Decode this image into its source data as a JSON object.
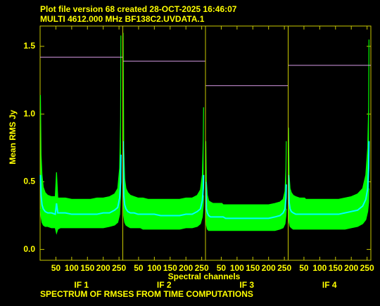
{
  "chart_data": {
    "type": "line",
    "title": "Plot file version 68  created 28-OCT-2025 16:46:07",
    "subtitle": "MULTI 4612.000 MHz  BF138C2.UVDATA.1",
    "y_label": "Mean RMS Jy",
    "x_label": "Spectral channels",
    "footer": "SPECTRUM OF RMSES FROM TIME COMPUTATIONS",
    "ylim": [
      -0.08,
      1.65
    ],
    "yticks": [
      {
        "value": 0,
        "label": "0.0"
      },
      0.5,
      {
        "value": 1,
        "label": "1.0"
      },
      1.5
    ],
    "xlim": [
      0,
      262
    ],
    "xticks": [
      50,
      100,
      150,
      200,
      250
    ],
    "grid": false,
    "x": [
      1,
      3,
      6,
      10,
      16,
      24,
      36,
      48,
      52,
      56,
      64,
      80,
      100,
      120,
      140,
      160,
      180,
      200,
      220,
      236,
      246,
      252,
      255,
      256
    ],
    "panels": [
      {
        "label": "IF 1",
        "level": 1.42,
        "level_color": "#d79be6",
        "series": [
          {
            "color": "#00ff00",
            "values": [
              1.14,
              0.7,
              0.55,
              0.46,
              0.42,
              0.4,
              0.39,
              0.39,
              0.57,
              0.38,
              0.38,
              0.38,
              0.37,
              0.37,
              0.37,
              0.37,
              0.38,
              0.38,
              0.39,
              0.41,
              0.45,
              0.6,
              0.95,
              1.58
            ]
          },
          {
            "color": "#00ff00",
            "values": [
              0.3,
              0.24,
              0.2,
              0.18,
              0.17,
              0.17,
              0.16,
              0.16,
              0.12,
              0.15,
              0.16,
              0.16,
              0.16,
              0.16,
              0.16,
              0.16,
              0.16,
              0.16,
              0.17,
              0.18,
              0.2,
              0.26,
              0.4,
              0.6
            ]
          },
          {
            "color": "#00ffff",
            "values": [
              0.55,
              0.4,
              0.33,
              0.3,
              0.28,
              0.27,
              0.27,
              0.26,
              0.34,
              0.27,
              0.27,
              0.27,
              0.26,
              0.26,
              0.26,
              0.26,
              0.26,
              0.27,
              0.27,
              0.29,
              0.31,
              0.38,
              0.5,
              0.7
            ]
          }
        ]
      },
      {
        "label": "IF 2",
        "level": 1.39,
        "level_color": "#d79be6",
        "series": [
          {
            "color": "#00ff00",
            "values": [
              1.6,
              0.75,
              0.52,
              0.45,
              0.42,
              0.4,
              0.39,
              0.38,
              0.38,
              0.38,
              0.38,
              0.37,
              0.37,
              0.37,
              0.37,
              0.37,
              0.37,
              0.38,
              0.38,
              0.4,
              0.44,
              0.55,
              0.8,
              1.05
            ]
          },
          {
            "color": "#00ff00",
            "values": [
              0.45,
              0.25,
              0.2,
              0.18,
              0.17,
              0.16,
              0.16,
              0.16,
              0.16,
              0.16,
              0.15,
              0.15,
              0.15,
              0.15,
              0.15,
              0.15,
              0.15,
              0.16,
              0.16,
              0.17,
              0.19,
              0.24,
              0.32,
              0.4
            ]
          },
          {
            "color": "#00ffff",
            "values": [
              0.8,
              0.4,
              0.33,
              0.3,
              0.28,
              0.27,
              0.27,
              0.26,
              0.26,
              0.26,
              0.26,
              0.26,
              0.26,
              0.25,
              0.25,
              0.25,
              0.25,
              0.26,
              0.26,
              0.28,
              0.3,
              0.36,
              0.45,
              0.55
            ]
          }
        ]
      },
      {
        "label": "IF 3",
        "level": 1.21,
        "level_color": "#d79be6",
        "series": [
          {
            "color": "#00ff00",
            "values": [
              0.8,
              0.5,
              0.4,
              0.36,
              0.35,
              0.34,
              0.34,
              0.34,
              0.34,
              0.33,
              0.33,
              0.33,
              0.33,
              0.33,
              0.33,
              0.33,
              0.33,
              0.33,
              0.34,
              0.35,
              0.37,
              0.43,
              0.6,
              0.8
            ]
          },
          {
            "color": "#00ff00",
            "values": [
              0.28,
              0.18,
              0.15,
              0.14,
              0.14,
              0.14,
              0.14,
              0.14,
              0.14,
              0.14,
              0.14,
              0.14,
              0.14,
              0.14,
              0.14,
              0.14,
              0.14,
              0.14,
              0.14,
              0.15,
              0.16,
              0.19,
              0.25,
              0.3
            ]
          },
          {
            "color": "#00ffff",
            "values": [
              0.5,
              0.3,
              0.27,
              0.25,
              0.24,
              0.24,
              0.24,
              0.24,
              0.24,
              0.24,
              0.23,
              0.23,
              0.23,
              0.23,
              0.23,
              0.23,
              0.23,
              0.23,
              0.24,
              0.25,
              0.27,
              0.3,
              0.38,
              0.48
            ]
          }
        ]
      },
      {
        "label": "IF 4",
        "level": 1.36,
        "level_color": "#d79be6",
        "series": [
          {
            "color": "#00ff00",
            "values": [
              0.9,
              0.55,
              0.45,
              0.42,
              0.4,
              0.39,
              0.38,
              0.38,
              0.38,
              0.37,
              0.37,
              0.37,
              0.37,
              0.37,
              0.37,
              0.37,
              0.38,
              0.39,
              0.41,
              0.45,
              0.55,
              0.75,
              1.05,
              1.55
            ]
          },
          {
            "color": "#00ff00",
            "values": [
              0.3,
              0.2,
              0.17,
              0.16,
              0.15,
              0.15,
              0.15,
              0.15,
              0.15,
              0.15,
              0.15,
              0.15,
              0.15,
              0.15,
              0.15,
              0.15,
              0.15,
              0.16,
              0.17,
              0.19,
              0.22,
              0.28,
              0.35,
              0.45
            ]
          },
          {
            "color": "#00ffff",
            "values": [
              0.55,
              0.35,
              0.3,
              0.28,
              0.27,
              0.26,
              0.26,
              0.26,
              0.26,
              0.26,
              0.26,
              0.26,
              0.26,
              0.26,
              0.26,
              0.26,
              0.27,
              0.28,
              0.29,
              0.32,
              0.37,
              0.45,
              0.6,
              0.8
            ]
          }
        ]
      }
    ],
    "axis_color": "#c8c800",
    "text_color": "#ffff00"
  }
}
